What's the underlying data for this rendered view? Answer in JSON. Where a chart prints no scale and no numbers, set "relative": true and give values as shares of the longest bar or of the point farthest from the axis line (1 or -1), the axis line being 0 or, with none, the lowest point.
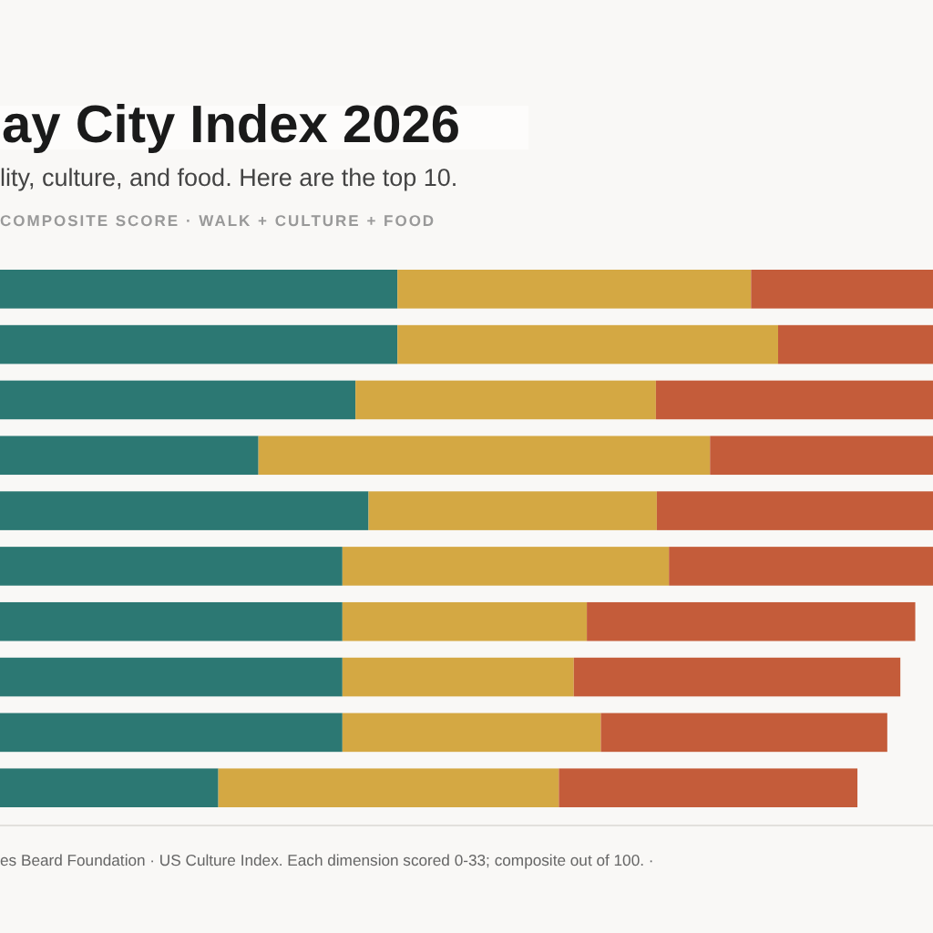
{
  "chart_data": {
    "type": "bar",
    "orientation": "horizontal",
    "stacked": true,
    "relative": true,
    "title": "ay City Index 2026",
    "subtitle": "lity, culture, and food. Here are the top 10.",
    "xlabel": "COMPOSITE SCORE · WALK + CULTURE + FOOD",
    "annotations": [
      "es Beard Foundation · US Culture Index. Each dimension scored 0-33; composite out of 100. ·"
    ],
    "categories": [
      null,
      null,
      null,
      null,
      null,
      null,
      null,
      null,
      null,
      null
    ],
    "series": [
      {
        "color": "#2c7873",
        "values": [
          0.426,
          0.426,
          0.381,
          0.277,
          0.395,
          0.367,
          0.367,
          0.367,
          0.367,
          0.234
        ]
      },
      {
        "color": "#d4a843",
        "values": [
          0.379,
          0.408,
          0.322,
          0.484,
          0.309,
          0.35,
          0.262,
          0.248,
          0.277,
          0.365
        ]
      },
      {
        "color": "#c45c3a",
        "values": [
          0.195,
          0.166,
          0.297,
          0.239,
          0.296,
          0.283,
          0.352,
          0.35,
          0.307,
          0.32
        ]
      }
    ]
  }
}
